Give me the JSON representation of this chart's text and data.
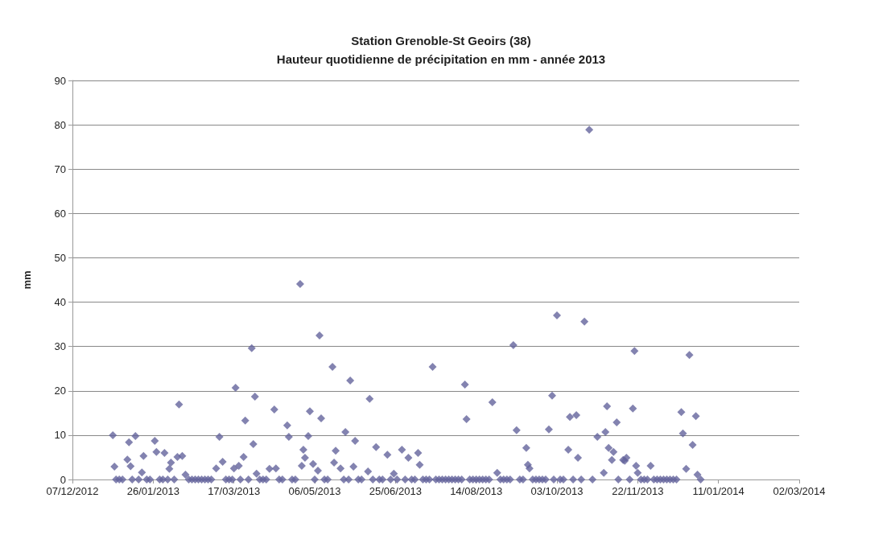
{
  "chart_data": {
    "type": "scatter",
    "title": "Station Grenoble-St Geoirs (38)",
    "subtitle": "Hauteur quotidienne de précipitation en mm - année 2013",
    "ylabel": "mm",
    "xlim": [
      "2012-12-07",
      "2014-03-02"
    ],
    "xticks": [
      {
        "value": "2012-12-07",
        "label": "07/12/2012"
      },
      {
        "value": "2013-01-26",
        "label": "26/01/2013"
      },
      {
        "value": "2013-03-17",
        "label": "17/03/2013"
      },
      {
        "value": "2013-05-06",
        "label": "06/05/2013"
      },
      {
        "value": "2013-06-25",
        "label": "25/06/2013"
      },
      {
        "value": "2013-08-14",
        "label": "14/08/2013"
      },
      {
        "value": "2013-10-03",
        "label": "03/10/2013"
      },
      {
        "value": "2013-11-22",
        "label": "22/11/2013"
      },
      {
        "value": "2014-01-11",
        "label": "11/01/2014"
      },
      {
        "value": "2014-03-02",
        "label": "02/03/2014"
      }
    ],
    "ylim": [
      0,
      90
    ],
    "yticks": [
      0,
      10,
      20,
      30,
      40,
      50,
      60,
      70,
      80,
      90
    ],
    "grid": "y",
    "marker": "diamond",
    "series": [
      {
        "color": "#64649c",
        "x": [
          "2013-01-01",
          "2013-01-02",
          "2013-01-10",
          "2013-01-11",
          "2013-01-12",
          "2013-01-15",
          "2013-01-19",
          "2013-01-20",
          "2013-01-27",
          "2013-01-28",
          "2013-02-02",
          "2013-02-05",
          "2013-02-06",
          "2013-02-10",
          "2013-02-11",
          "2013-02-13",
          "2013-02-15",
          "2013-03-06",
          "2013-03-08",
          "2013-03-10",
          "2013-03-17",
          "2013-03-18",
          "2013-03-20",
          "2013-03-23",
          "2013-03-24",
          "2013-03-28",
          "2013-03-29",
          "2013-03-30",
          "2013-03-31",
          "2013-04-08",
          "2013-04-11",
          "2013-04-12",
          "2013-04-19",
          "2013-04-20",
          "2013-04-27",
          "2013-04-28",
          "2013-04-29",
          "2013-04-30",
          "2013-05-02",
          "2013-05-03",
          "2013-05-05",
          "2013-05-08",
          "2013-05-09",
          "2013-05-10",
          "2013-05-17",
          "2013-05-18",
          "2013-05-19",
          "2013-05-22",
          "2013-05-25",
          "2013-05-28",
          "2013-05-30",
          "2013-05-31",
          "2013-06-08",
          "2013-06-09",
          "2013-06-13",
          "2013-06-20",
          "2013-06-24",
          "2013-06-29",
          "2013-07-03",
          "2013-07-09",
          "2013-07-10",
          "2013-07-18",
          "2013-08-07",
          "2013-08-08",
          "2013-08-24",
          "2013-08-27",
          "2013-09-06",
          "2013-09-08",
          "2013-09-14",
          "2013-09-15",
          "2013-09-16",
          "2013-09-28",
          "2013-09-30",
          "2013-10-03",
          "2013-10-10",
          "2013-10-11",
          "2013-10-15",
          "2013-10-16",
          "2013-10-20",
          "2013-10-23",
          "2013-10-28",
          "2013-11-01",
          "2013-11-02",
          "2013-11-03",
          "2013-11-04",
          "2013-11-06",
          "2013-11-07",
          "2013-11-09",
          "2013-11-13",
          "2013-11-14",
          "2013-11-15",
          "2013-11-19",
          "2013-11-20",
          "2013-11-21",
          "2013-11-22",
          "2013-11-30",
          "2013-12-19",
          "2013-12-20",
          "2013-12-22",
          "2013-12-24",
          "2013-12-26",
          "2013-12-28",
          "2013-12-29",
          "2013-01-03",
          "2013-01-05",
          "2013-01-07",
          "2013-01-13",
          "2013-01-17",
          "2013-01-22",
          "2013-01-24",
          "2013-01-30",
          "2013-02-01",
          "2013-02-04",
          "2013-02-08",
          "2013-02-17",
          "2013-02-19",
          "2013-02-21",
          "2013-02-23",
          "2013-02-25",
          "2013-02-27",
          "2013-03-01",
          "2013-03-03",
          "2013-03-12",
          "2013-03-14",
          "2013-03-16",
          "2013-03-21",
          "2013-03-26",
          "2013-04-02",
          "2013-04-04",
          "2013-04-06",
          "2013-04-14",
          "2013-04-16",
          "2013-04-22",
          "2013-04-24",
          "2013-05-06",
          "2013-05-12",
          "2013-05-14",
          "2013-05-24",
          "2013-05-27",
          "2013-06-02",
          "2013-06-04",
          "2013-06-11",
          "2013-06-15",
          "2013-06-17",
          "2013-06-22",
          "2013-06-26",
          "2013-07-01",
          "2013-07-05",
          "2013-07-07",
          "2013-07-12",
          "2013-07-14",
          "2013-07-16",
          "2013-07-20",
          "2013-07-22",
          "2013-07-24",
          "2013-07-26",
          "2013-07-28",
          "2013-07-30",
          "2013-08-01",
          "2013-08-03",
          "2013-08-05",
          "2013-08-10",
          "2013-08-12",
          "2013-08-14",
          "2013-08-16",
          "2013-08-18",
          "2013-08-20",
          "2013-08-22",
          "2013-08-29",
          "2013-08-31",
          "2013-09-02",
          "2013-09-04",
          "2013-09-10",
          "2013-09-12",
          "2013-09-18",
          "2013-09-20",
          "2013-09-22",
          "2013-09-24",
          "2013-09-26",
          "2013-10-01",
          "2013-10-05",
          "2013-10-07",
          "2013-10-13",
          "2013-10-18",
          "2013-10-25",
          "2013-11-10",
          "2013-11-17",
          "2013-11-24",
          "2013-11-26",
          "2013-11-28",
          "2013-12-02",
          "2013-12-04",
          "2013-12-06",
          "2013-12-08",
          "2013-12-10",
          "2013-12-12",
          "2013-12-14",
          "2013-12-16",
          "2013-12-31"
        ],
        "values": [
          10.0,
          2.9,
          4.5,
          8.4,
          3.0,
          9.8,
          1.6,
          5.3,
          8.7,
          6.2,
          6.0,
          2.4,
          3.8,
          5.1,
          16.9,
          5.3,
          1.1,
          2.5,
          9.6,
          4.0,
          2.5,
          20.7,
          3.1,
          5.1,
          13.3,
          29.6,
          8.0,
          18.7,
          1.3,
          2.4,
          15.8,
          2.5,
          12.2,
          9.6,
          44.1,
          3.1,
          6.7,
          4.9,
          9.8,
          15.4,
          3.5,
          2.0,
          32.5,
          13.8,
          25.4,
          3.8,
          6.5,
          2.5,
          10.7,
          22.3,
          2.9,
          8.7,
          1.8,
          18.2,
          7.3,
          5.6,
          1.3,
          6.7,
          4.9,
          6.0,
          3.3,
          25.4,
          21.4,
          13.6,
          17.4,
          1.5,
          30.3,
          11.1,
          7.1,
          3.3,
          2.5,
          11.3,
          18.9,
          37.0,
          6.7,
          14.1,
          14.5,
          4.9,
          35.6,
          78.9,
          9.6,
          1.5,
          10.7,
          16.5,
          7.1,
          4.4,
          6.2,
          12.9,
          4.4,
          4.2,
          4.9,
          16.0,
          29.0,
          3.1,
          1.5,
          3.1,
          15.2,
          10.4,
          2.4,
          28.1,
          7.8,
          14.3,
          1.1,
          0,
          0,
          0,
          0,
          0,
          0,
          0,
          0,
          0,
          0,
          0,
          0,
          0,
          0,
          0,
          0,
          0,
          0,
          0,
          0,
          0,
          0,
          0,
          0,
          0,
          0,
          0,
          0,
          0,
          0,
          0,
          0,
          0,
          0,
          0,
          0,
          0,
          0,
          0,
          0,
          0,
          0,
          0,
          0,
          0,
          0,
          0,
          0,
          0,
          0,
          0,
          0,
          0,
          0,
          0,
          0,
          0,
          0,
          0,
          0,
          0,
          0,
          0,
          0,
          0,
          0,
          0,
          0,
          0,
          0,
          0,
          0,
          0,
          0,
          0,
          0,
          0,
          0,
          0,
          0,
          0,
          0,
          0,
          0,
          0,
          0,
          0,
          0,
          0,
          0,
          0,
          0,
          0,
          0,
          0,
          0
        ]
      }
    ]
  }
}
